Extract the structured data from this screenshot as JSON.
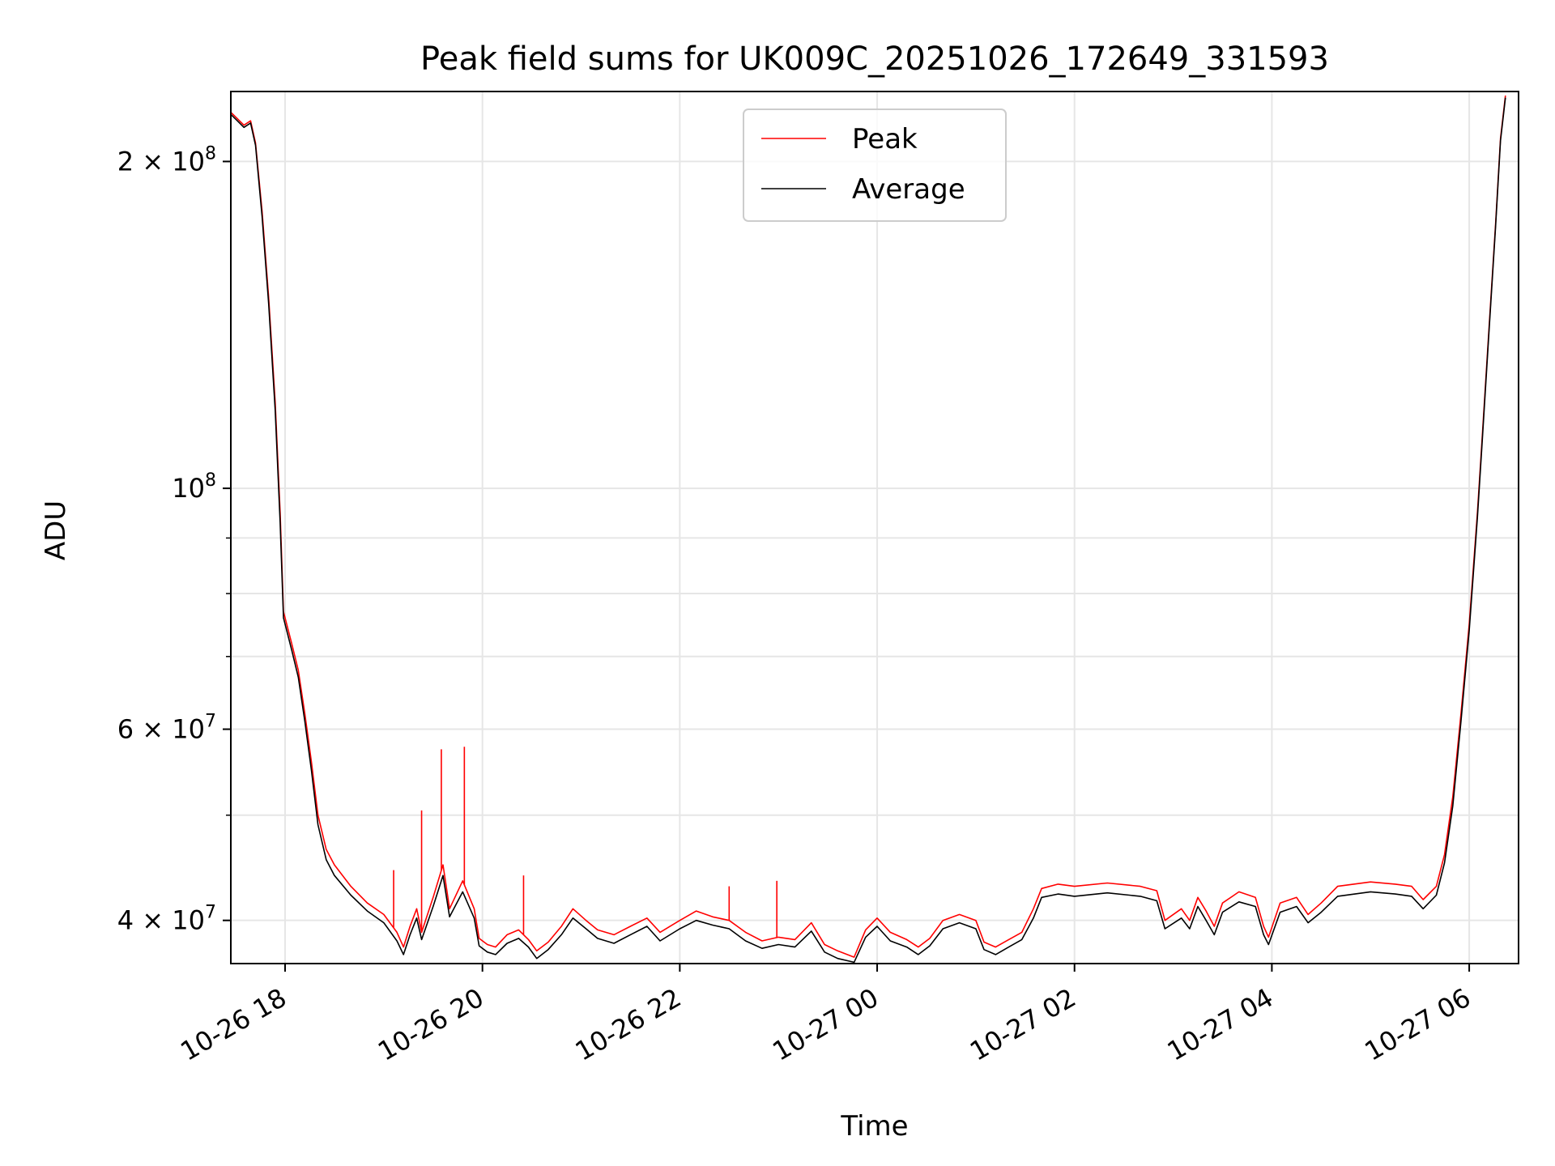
{
  "chart_data": {
    "type": "line",
    "title": "Peak field sums for UK009C_20251026_172649_331593",
    "xlabel": "Time",
    "ylabel": "ADU",
    "xlim": [
      "2025-10-26 17:27",
      "2025-10-27 06:30"
    ],
    "ylim": [
      36500000,
      232000000
    ],
    "yscale": "log",
    "grid": true,
    "legend_loc": "upper center",
    "x_ticks": [
      {
        "value": "2025-10-26 18:00",
        "label": "10-26 18"
      },
      {
        "value": "2025-10-26 20:00",
        "label": "10-26 20"
      },
      {
        "value": "2025-10-26 22:00",
        "label": "10-26 22"
      },
      {
        "value": "2025-10-27 00:00",
        "label": "10-27 00"
      },
      {
        "value": "2025-10-27 02:00",
        "label": "10-27 02"
      },
      {
        "value": "2025-10-27 04:00",
        "label": "10-27 04"
      },
      {
        "value": "2025-10-27 06:00",
        "label": "10-27 06"
      }
    ],
    "y_ticks_major": [
      {
        "value": 40000000,
        "mant": "4",
        "exp": "7"
      },
      {
        "value": 60000000,
        "mant": "6",
        "exp": "7"
      },
      {
        "value": 100000000,
        "mant": "",
        "exp": "8"
      },
      {
        "value": 200000000,
        "mant": "2",
        "exp": "8"
      }
    ],
    "y_ticks_minor": [
      50000000,
      70000000,
      80000000,
      90000000
    ],
    "series": [
      {
        "name": "Peak",
        "color": "#ff0000",
        "points": [
          [
            "2025-10-26 17:27",
            222000000
          ],
          [
            "2025-10-26 17:31",
            219000000
          ],
          [
            "2025-10-26 17:35",
            216000000
          ],
          [
            "2025-10-26 17:39",
            218000000
          ],
          [
            "2025-10-26 17:42",
            208000000
          ],
          [
            "2025-10-26 17:46",
            180000000
          ],
          [
            "2025-10-26 17:50",
            150000000
          ],
          [
            "2025-10-26 17:54",
            120000000
          ],
          [
            "2025-10-26 17:57",
            95000000
          ],
          [
            "2025-10-26 17:59",
            77000000
          ],
          [
            "2025-10-26 18:04",
            72000000
          ],
          [
            "2025-10-26 18:08",
            68000000
          ],
          [
            "2025-10-26 18:12",
            62000000
          ],
          [
            "2025-10-26 18:16",
            56000000
          ],
          [
            "2025-10-26 18:20",
            50000000
          ],
          [
            "2025-10-26 18:25",
            46500000
          ],
          [
            "2025-10-26 18:30",
            45000000
          ],
          [
            "2025-10-26 18:40",
            43000000
          ],
          [
            "2025-10-26 18:50",
            41500000
          ],
          [
            "2025-10-26 19:00",
            40500000
          ],
          [
            "2025-10-26 19:08",
            39000000
          ],
          [
            "2025-10-26 19:12",
            37800000
          ],
          [
            "2025-10-26 19:16",
            39500000
          ],
          [
            "2025-10-26 19:20",
            41000000
          ],
          [
            "2025-10-26 19:23",
            39000000
          ],
          [
            "2025-10-26 19:30",
            42000000
          ],
          [
            "2025-10-26 19:36",
            45000000
          ],
          [
            "2025-10-26 19:40",
            41000000
          ],
          [
            "2025-10-26 19:48",
            43500000
          ],
          [
            "2025-10-26 19:55",
            41000000
          ],
          [
            "2025-10-26 19:58",
            38500000
          ],
          [
            "2025-10-26 20:03",
            38000000
          ],
          [
            "2025-10-26 20:08",
            37800000
          ],
          [
            "2025-10-26 20:15",
            38800000
          ],
          [
            "2025-10-26 20:22",
            39200000
          ],
          [
            "2025-10-26 20:28",
            38400000
          ],
          [
            "2025-10-26 20:33",
            37500000
          ],
          [
            "2025-10-26 20:40",
            38200000
          ],
          [
            "2025-10-26 20:48",
            39500000
          ],
          [
            "2025-10-26 20:55",
            41000000
          ],
          [
            "2025-10-26 21:03",
            40000000
          ],
          [
            "2025-10-26 21:10",
            39200000
          ],
          [
            "2025-10-26 21:20",
            38800000
          ],
          [
            "2025-10-26 21:30",
            39500000
          ],
          [
            "2025-10-26 21:40",
            40200000
          ],
          [
            "2025-10-26 21:48",
            39000000
          ],
          [
            "2025-10-26 22:00",
            40000000
          ],
          [
            "2025-10-26 22:10",
            40800000
          ],
          [
            "2025-10-26 22:20",
            40300000
          ],
          [
            "2025-10-26 22:30",
            40000000
          ],
          [
            "2025-10-26 22:40",
            39000000
          ],
          [
            "2025-10-26 22:50",
            38300000
          ],
          [
            "2025-10-26 23:00",
            38600000
          ],
          [
            "2025-10-26 23:10",
            38400000
          ],
          [
            "2025-10-26 23:20",
            39800000
          ],
          [
            "2025-10-26 23:28",
            38000000
          ],
          [
            "2025-10-26 23:36",
            37500000
          ],
          [
            "2025-10-26 23:46",
            37000000
          ],
          [
            "2025-10-26 23:53",
            39200000
          ],
          [
            "2025-10-27 00:00",
            40200000
          ],
          [
            "2025-10-27 00:08",
            39000000
          ],
          [
            "2025-10-27 00:18",
            38400000
          ],
          [
            "2025-10-27 00:25",
            37800000
          ],
          [
            "2025-10-27 00:32",
            38500000
          ],
          [
            "2025-10-27 00:40",
            40000000
          ],
          [
            "2025-10-27 00:50",
            40500000
          ],
          [
            "2025-10-27 01:00",
            40000000
          ],
          [
            "2025-10-27 01:05",
            38200000
          ],
          [
            "2025-10-27 01:12",
            37800000
          ],
          [
            "2025-10-27 01:20",
            38400000
          ],
          [
            "2025-10-27 01:28",
            39000000
          ],
          [
            "2025-10-27 01:35",
            41000000
          ],
          [
            "2025-10-27 01:40",
            42800000
          ],
          [
            "2025-10-27 01:50",
            43200000
          ],
          [
            "2025-10-27 02:00",
            43000000
          ],
          [
            "2025-10-27 02:20",
            43300000
          ],
          [
            "2025-10-27 02:40",
            43000000
          ],
          [
            "2025-10-27 02:50",
            42600000
          ],
          [
            "2025-10-27 02:55",
            40000000
          ],
          [
            "2025-10-27 03:05",
            41000000
          ],
          [
            "2025-10-27 03:10",
            40000000
          ],
          [
            "2025-10-27 03:15",
            42000000
          ],
          [
            "2025-10-27 03:20",
            40800000
          ],
          [
            "2025-10-27 03:25",
            39500000
          ],
          [
            "2025-10-27 03:30",
            41500000
          ],
          [
            "2025-10-27 03:40",
            42500000
          ],
          [
            "2025-10-27 03:50",
            42000000
          ],
          [
            "2025-10-27 03:55",
            39500000
          ],
          [
            "2025-10-27 03:58",
            38600000
          ],
          [
            "2025-10-27 04:05",
            41500000
          ],
          [
            "2025-10-27 04:15",
            42000000
          ],
          [
            "2025-10-27 04:22",
            40500000
          ],
          [
            "2025-10-27 04:30",
            41500000
          ],
          [
            "2025-10-27 04:40",
            43000000
          ],
          [
            "2025-10-27 05:00",
            43400000
          ],
          [
            "2025-10-27 05:15",
            43200000
          ],
          [
            "2025-10-27 05:25",
            43000000
          ],
          [
            "2025-10-27 05:32",
            41800000
          ],
          [
            "2025-10-27 05:40",
            43000000
          ],
          [
            "2025-10-27 05:45",
            46000000
          ],
          [
            "2025-10-27 05:50",
            52000000
          ],
          [
            "2025-10-27 05:55",
            62000000
          ],
          [
            "2025-10-27 06:00",
            75000000
          ],
          [
            "2025-10-27 06:05",
            95000000
          ],
          [
            "2025-10-27 06:08",
            112000000
          ],
          [
            "2025-10-27 06:12",
            140000000
          ],
          [
            "2025-10-27 06:16",
            175000000
          ],
          [
            "2025-10-27 06:19",
            210000000
          ],
          [
            "2025-10-27 06:22",
            230000000
          ]
        ]
      },
      {
        "name": "Average",
        "color": "#000000",
        "points": [
          [
            "2025-10-26 17:27",
            221000000
          ],
          [
            "2025-10-26 17:31",
            218000000
          ],
          [
            "2025-10-26 17:35",
            215000000
          ],
          [
            "2025-10-26 17:39",
            217000000
          ],
          [
            "2025-10-26 17:42",
            207000000
          ],
          [
            "2025-10-26 17:46",
            178000000
          ],
          [
            "2025-10-26 17:50",
            148000000
          ],
          [
            "2025-10-26 17:54",
            118000000
          ],
          [
            "2025-10-26 17:57",
            93000000
          ],
          [
            "2025-10-26 17:59",
            76000000
          ],
          [
            "2025-10-26 18:04",
            71000000
          ],
          [
            "2025-10-26 18:08",
            67000000
          ],
          [
            "2025-10-26 18:12",
            61000000
          ],
          [
            "2025-10-26 18:16",
            55000000
          ],
          [
            "2025-10-26 18:20",
            49000000
          ],
          [
            "2025-10-26 18:25",
            45500000
          ],
          [
            "2025-10-26 18:30",
            44000000
          ],
          [
            "2025-10-26 18:40",
            42200000
          ],
          [
            "2025-10-26 18:50",
            40800000
          ],
          [
            "2025-10-26 19:00",
            39800000
          ],
          [
            "2025-10-26 19:08",
            38300000
          ],
          [
            "2025-10-26 19:12",
            37200000
          ],
          [
            "2025-10-26 19:16",
            38800000
          ],
          [
            "2025-10-26 19:20",
            40200000
          ],
          [
            "2025-10-26 19:23",
            38400000
          ],
          [
            "2025-10-26 19:30",
            41200000
          ],
          [
            "2025-10-26 19:36",
            44000000
          ],
          [
            "2025-10-26 19:40",
            40300000
          ],
          [
            "2025-10-26 19:48",
            42500000
          ],
          [
            "2025-10-26 19:55",
            40200000
          ],
          [
            "2025-10-26 19:58",
            37900000
          ],
          [
            "2025-10-26 20:03",
            37400000
          ],
          [
            "2025-10-26 20:08",
            37200000
          ],
          [
            "2025-10-26 20:15",
            38100000
          ],
          [
            "2025-10-26 20:22",
            38500000
          ],
          [
            "2025-10-26 20:28",
            37800000
          ],
          [
            "2025-10-26 20:33",
            36900000
          ],
          [
            "2025-10-26 20:40",
            37600000
          ],
          [
            "2025-10-26 20:48",
            38800000
          ],
          [
            "2025-10-26 20:55",
            40200000
          ],
          [
            "2025-10-26 21:03",
            39300000
          ],
          [
            "2025-10-26 21:10",
            38500000
          ],
          [
            "2025-10-26 21:20",
            38100000
          ],
          [
            "2025-10-26 21:30",
            38800000
          ],
          [
            "2025-10-26 21:40",
            39500000
          ],
          [
            "2025-10-26 21:48",
            38300000
          ],
          [
            "2025-10-26 22:00",
            39300000
          ],
          [
            "2025-10-26 22:10",
            40000000
          ],
          [
            "2025-10-26 22:20",
            39600000
          ],
          [
            "2025-10-26 22:30",
            39300000
          ],
          [
            "2025-10-26 22:40",
            38300000
          ],
          [
            "2025-10-26 22:50",
            37700000
          ],
          [
            "2025-10-26 23:00",
            38000000
          ],
          [
            "2025-10-26 23:10",
            37800000
          ],
          [
            "2025-10-26 23:20",
            39100000
          ],
          [
            "2025-10-26 23:28",
            37400000
          ],
          [
            "2025-10-26 23:36",
            36900000
          ],
          [
            "2025-10-26 23:46",
            36600000
          ],
          [
            "2025-10-26 23:53",
            38600000
          ],
          [
            "2025-10-27 00:00",
            39500000
          ],
          [
            "2025-10-27 00:08",
            38300000
          ],
          [
            "2025-10-27 00:18",
            37800000
          ],
          [
            "2025-10-27 00:25",
            37200000
          ],
          [
            "2025-10-27 00:32",
            37900000
          ],
          [
            "2025-10-27 00:40",
            39300000
          ],
          [
            "2025-10-27 00:50",
            39800000
          ],
          [
            "2025-10-27 01:00",
            39300000
          ],
          [
            "2025-10-27 01:05",
            37600000
          ],
          [
            "2025-10-27 01:12",
            37200000
          ],
          [
            "2025-10-27 01:20",
            37800000
          ],
          [
            "2025-10-27 01:28",
            38400000
          ],
          [
            "2025-10-27 01:35",
            40200000
          ],
          [
            "2025-10-27 01:40",
            42000000
          ],
          [
            "2025-10-27 01:50",
            42300000
          ],
          [
            "2025-10-27 02:00",
            42100000
          ],
          [
            "2025-10-27 02:20",
            42400000
          ],
          [
            "2025-10-27 02:40",
            42100000
          ],
          [
            "2025-10-27 02:50",
            41700000
          ],
          [
            "2025-10-27 02:55",
            39300000
          ],
          [
            "2025-10-27 03:05",
            40200000
          ],
          [
            "2025-10-27 03:10",
            39300000
          ],
          [
            "2025-10-27 03:15",
            41200000
          ],
          [
            "2025-10-27 03:20",
            40000000
          ],
          [
            "2025-10-27 03:25",
            38800000
          ],
          [
            "2025-10-27 03:30",
            40700000
          ],
          [
            "2025-10-27 03:40",
            41600000
          ],
          [
            "2025-10-27 03:50",
            41200000
          ],
          [
            "2025-10-27 03:55",
            38800000
          ],
          [
            "2025-10-27 03:58",
            38000000
          ],
          [
            "2025-10-27 04:05",
            40700000
          ],
          [
            "2025-10-27 04:15",
            41200000
          ],
          [
            "2025-10-27 04:22",
            39800000
          ],
          [
            "2025-10-27 04:30",
            40700000
          ],
          [
            "2025-10-27 04:40",
            42100000
          ],
          [
            "2025-10-27 05:00",
            42500000
          ],
          [
            "2025-10-27 05:15",
            42300000
          ],
          [
            "2025-10-27 05:25",
            42100000
          ],
          [
            "2025-10-27 05:32",
            41000000
          ],
          [
            "2025-10-27 05:40",
            42200000
          ],
          [
            "2025-10-27 05:45",
            45200000
          ],
          [
            "2025-10-27 05:50",
            51000000
          ],
          [
            "2025-10-27 05:55",
            61000000
          ],
          [
            "2025-10-27 06:00",
            74000000
          ],
          [
            "2025-10-27 06:05",
            94000000
          ],
          [
            "2025-10-27 06:08",
            111000000
          ],
          [
            "2025-10-27 06:12",
            139000000
          ],
          [
            "2025-10-27 06:16",
            174000000
          ],
          [
            "2025-10-27 06:19",
            209000000
          ],
          [
            "2025-10-27 06:22",
            229000000
          ]
        ]
      }
    ],
    "spikes": [
      {
        "series": "Peak",
        "x": "2025-10-26 19:06",
        "y": 44500000
      },
      {
        "series": "Peak",
        "x": "2025-10-26 19:23",
        "y": 50500000
      },
      {
        "series": "Peak",
        "x": "2025-10-26 19:35",
        "y": 57500000
      },
      {
        "series": "Peak",
        "x": "2025-10-26 19:49",
        "y": 57800000
      },
      {
        "series": "Peak",
        "x": "2025-10-26 20:25",
        "y": 44000000
      },
      {
        "series": "Peak",
        "x": "2025-10-26 22:30",
        "y": 43000000
      },
      {
        "series": "Peak",
        "x": "2025-10-26 22:59",
        "y": 43500000
      }
    ]
  }
}
